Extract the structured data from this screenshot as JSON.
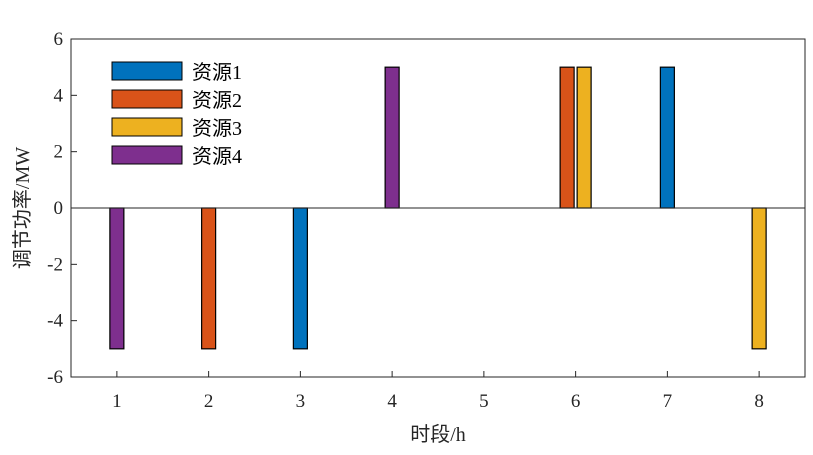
{
  "chart_data": {
    "type": "bar",
    "xlabel": "时段/h",
    "ylabel": "调节功率/MW",
    "x": [
      1,
      2,
      3,
      4,
      5,
      6,
      7,
      8
    ],
    "x_ticks": [
      "1",
      "2",
      "3",
      "4",
      "5",
      "6",
      "7",
      "8"
    ],
    "ylim": [
      -6,
      6
    ],
    "y_ticks": [
      "-6",
      "-4",
      "-2",
      "0",
      "2",
      "4",
      "6"
    ],
    "grid": false,
    "legend_position": "top-left",
    "series": [
      {
        "name": "资源1",
        "color": "#0072BD",
        "values": [
          0,
          0,
          -5,
          0,
          0,
          0,
          5,
          0
        ]
      },
      {
        "name": "资源2",
        "color": "#D95319",
        "values": [
          0,
          -5,
          0,
          0,
          0,
          5,
          0,
          0
        ]
      },
      {
        "name": "资源3",
        "color": "#EDB120",
        "values": [
          0,
          0,
          0,
          0,
          0,
          5,
          0,
          -5
        ]
      },
      {
        "name": "资源4",
        "color": "#7E2F8E",
        "values": [
          -5,
          0,
          0,
          5,
          0,
          0,
          0,
          0
        ]
      }
    ]
  }
}
